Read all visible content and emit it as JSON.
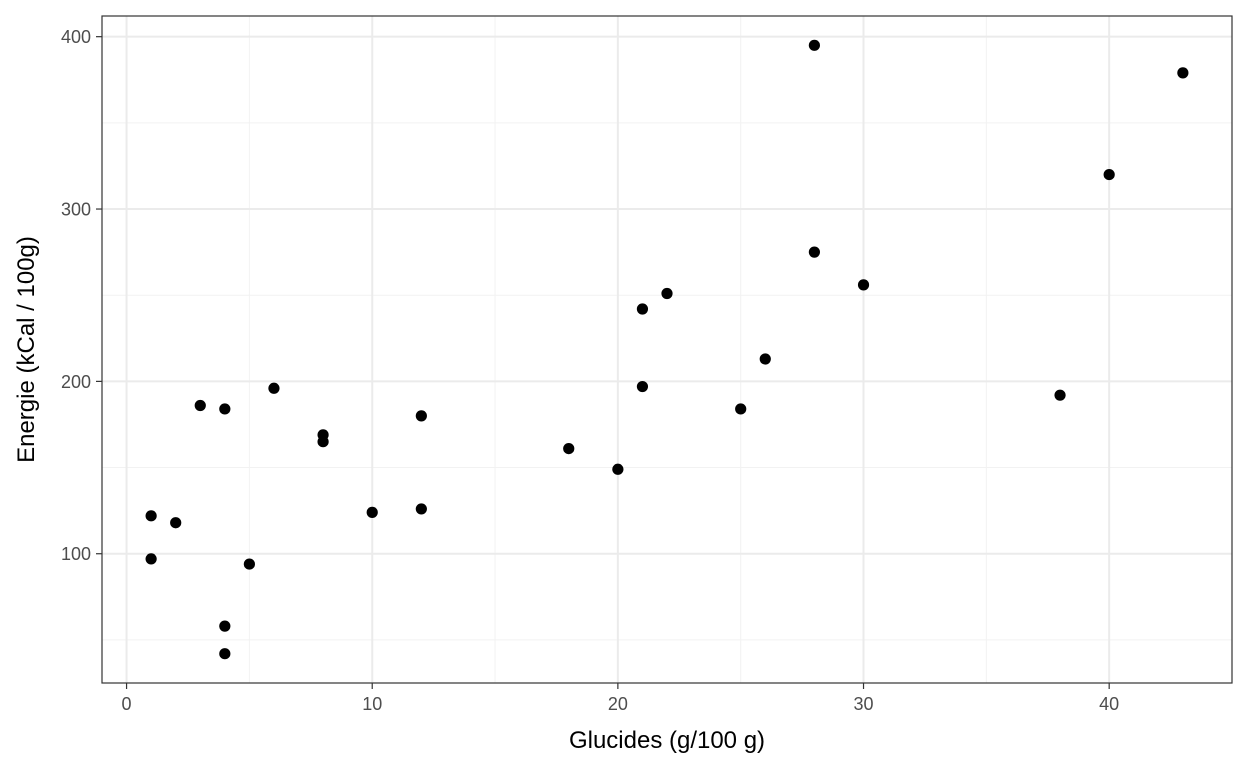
{
  "chart_data": {
    "type": "scatter",
    "title": "",
    "xlabel": "Glucides (g/100 g)",
    "ylabel": "Energie (kCal / 100g)",
    "xlim": [
      -1,
      45
    ],
    "ylim": [
      25,
      412
    ],
    "x_ticks": [
      0,
      10,
      20,
      30,
      40
    ],
    "y_ticks": [
      100,
      200,
      300,
      400
    ],
    "x_tick_labels": [
      "0",
      "10",
      "20",
      "30",
      "40"
    ],
    "y_tick_labels": [
      "100",
      "200",
      "300",
      "400"
    ],
    "x_minor": [
      5,
      15,
      25,
      35
    ],
    "y_minor": [
      50,
      150,
      250,
      350
    ],
    "grid": true,
    "point_color": "#000000",
    "points": [
      {
        "x": 1,
        "y": 122
      },
      {
        "x": 1,
        "y": 97
      },
      {
        "x": 2,
        "y": 118
      },
      {
        "x": 3,
        "y": 186
      },
      {
        "x": 4,
        "y": 184
      },
      {
        "x": 4,
        "y": 58
      },
      {
        "x": 4,
        "y": 42
      },
      {
        "x": 5,
        "y": 94
      },
      {
        "x": 6,
        "y": 196
      },
      {
        "x": 8,
        "y": 169
      },
      {
        "x": 8,
        "y": 165
      },
      {
        "x": 10,
        "y": 124
      },
      {
        "x": 12,
        "y": 180
      },
      {
        "x": 12,
        "y": 126
      },
      {
        "x": 18,
        "y": 161
      },
      {
        "x": 20,
        "y": 149
      },
      {
        "x": 21,
        "y": 242
      },
      {
        "x": 21,
        "y": 197
      },
      {
        "x": 22,
        "y": 251
      },
      {
        "x": 25,
        "y": 184
      },
      {
        "x": 26,
        "y": 213
      },
      {
        "x": 28,
        "y": 395
      },
      {
        "x": 28,
        "y": 275
      },
      {
        "x": 30,
        "y": 256
      },
      {
        "x": 38,
        "y": 192
      },
      {
        "x": 40,
        "y": 320
      },
      {
        "x": 43,
        "y": 379
      }
    ]
  }
}
